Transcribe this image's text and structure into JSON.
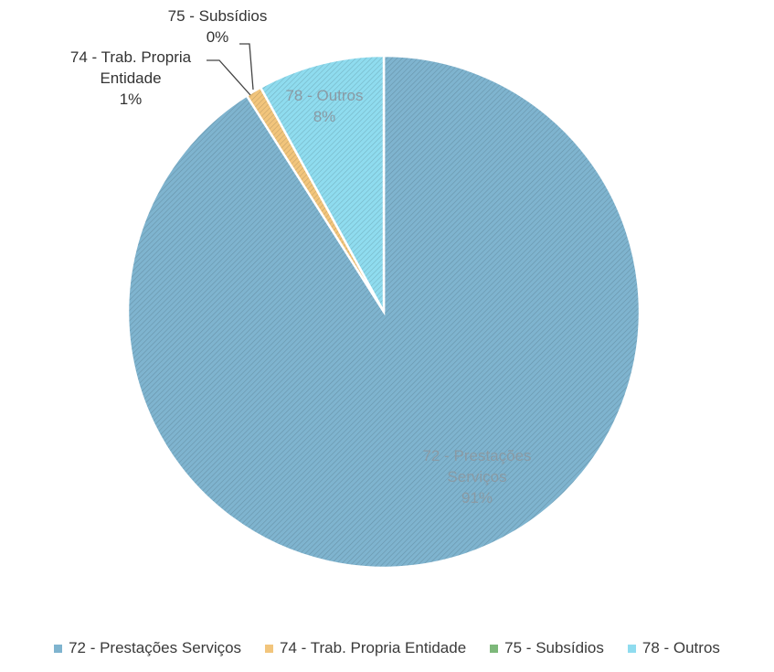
{
  "chart_data": {
    "type": "pie",
    "title": "",
    "series": [
      {
        "name": "72 - Prestações Serviços",
        "label_lines": [
          "72 - Prestações",
          "Serviços"
        ],
        "value": 91,
        "percent_label": "91%",
        "color": "#7fb4cf"
      },
      {
        "name": "74 - Trab. Propria Entidade",
        "label_lines": [
          "74 - Trab. Propria",
          "Entidade"
        ],
        "value": 1,
        "percent_label": "1%",
        "color": "#f2c57c"
      },
      {
        "name": "75 - Subsídios",
        "label_lines": [
          "75 - Subsídios"
        ],
        "value": 0,
        "percent_label": "0%",
        "color": "#7db87a"
      },
      {
        "name": "78 - Outros",
        "label_lines": [
          "78 - Outros"
        ],
        "value": 8,
        "percent_label": "8%",
        "color": "#8fdcef"
      }
    ],
    "start_angle": "12 o'clock",
    "direction": "clockwise",
    "legend_position": "bottom",
    "hatched_fill": true
  }
}
